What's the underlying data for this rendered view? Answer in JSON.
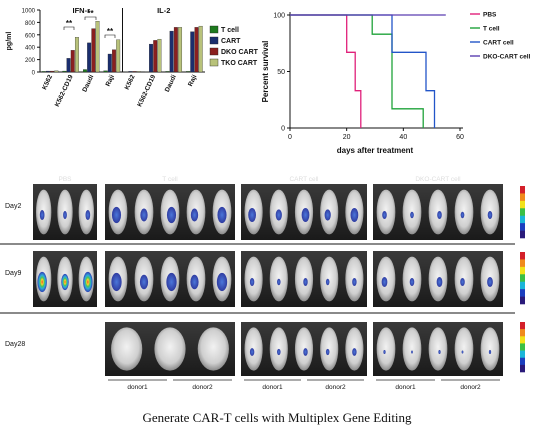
{
  "caption": "Generate CAR-T cells with Multiplex Gene Editing",
  "chart_data": [
    {
      "type": "bar",
      "ylabel": "pg/ml",
      "ylim": [
        0,
        1000
      ],
      "yticks": [
        0,
        200,
        400,
        600,
        800,
        1000
      ],
      "panels": [
        {
          "title": "IFN-r",
          "categories": [
            "K562",
            "K562-CD19",
            "Daudi",
            "Raji"
          ]
        },
        {
          "title": "IL-2",
          "categories": [
            "K562",
            "K562-CD19",
            "Daudi",
            "Raji"
          ]
        }
      ],
      "series": [
        {
          "name": "T cell",
          "color": "#1e7a1e"
        },
        {
          "name": "CART",
          "color": "#1a2e6e"
        },
        {
          "name": "DKO CART",
          "color": "#8a1f1f"
        },
        {
          "name": "TKO CART",
          "color": "#b8c27a"
        }
      ],
      "values": {
        "IFN-r": [
          [
            10,
            15,
            15,
            20
          ],
          [
            15,
            220,
            350,
            560
          ],
          [
            40,
            470,
            700,
            820
          ],
          [
            20,
            290,
            360,
            520
          ]
        ],
        "IL-2": [
          [
            5,
            10,
            10,
            10
          ],
          [
            5,
            450,
            510,
            530
          ],
          [
            10,
            660,
            720,
            720
          ],
          [
            10,
            650,
            720,
            740
          ]
        ]
      },
      "significance": [
        "**",
        "**",
        "**"
      ]
    },
    {
      "type": "line",
      "xlabel": "days after treatment",
      "ylabel": "Percent survival",
      "xlim": [
        0,
        60
      ],
      "ylim": [
        0,
        100
      ],
      "xticks": [
        0,
        20,
        40,
        60
      ],
      "yticks": [
        0,
        50,
        100
      ],
      "series": [
        {
          "name": "PBS",
          "color": "#e0207a",
          "steps": [
            [
              0,
              100
            ],
            [
              20,
              100
            ],
            [
              20,
              67
            ],
            [
              23,
              67
            ],
            [
              23,
              33
            ],
            [
              25,
              33
            ],
            [
              25,
              0
            ]
          ]
        },
        {
          "name": "T cell",
          "color": "#1fa33a",
          "steps": [
            [
              0,
              100
            ],
            [
              29,
              100
            ],
            [
              29,
              83
            ],
            [
              36,
              83
            ],
            [
              36,
              17
            ],
            [
              47,
              17
            ],
            [
              47,
              0
            ]
          ]
        },
        {
          "name": "CART cell",
          "color": "#2255c8",
          "steps": [
            [
              0,
              100
            ],
            [
              36,
              100
            ],
            [
              36,
              67
            ],
            [
              48,
              67
            ],
            [
              48,
              33
            ],
            [
              51,
              33
            ],
            [
              51,
              0
            ]
          ]
        },
        {
          "name": "DKO-CART cell",
          "color": "#5a3fb0",
          "steps": [
            [
              0,
              100
            ],
            [
              55,
              100
            ]
          ]
        }
      ]
    },
    {
      "type": "image-grid",
      "groups": [
        "PBS",
        "T cell",
        "CART cell",
        "DKO-CART cell"
      ],
      "rows": [
        "Day2",
        "Day9",
        "Day28"
      ],
      "donor_labels": [
        "donor1",
        "donor2",
        "donor1",
        "donor2",
        "donor1",
        "donor2"
      ],
      "colorbar_colors": [
        "#d4202a",
        "#f08a1c",
        "#f2e21a",
        "#3bbf45",
        "#1ab5d9",
        "#1c3fbf",
        "#2a1a7a"
      ]
    }
  ]
}
